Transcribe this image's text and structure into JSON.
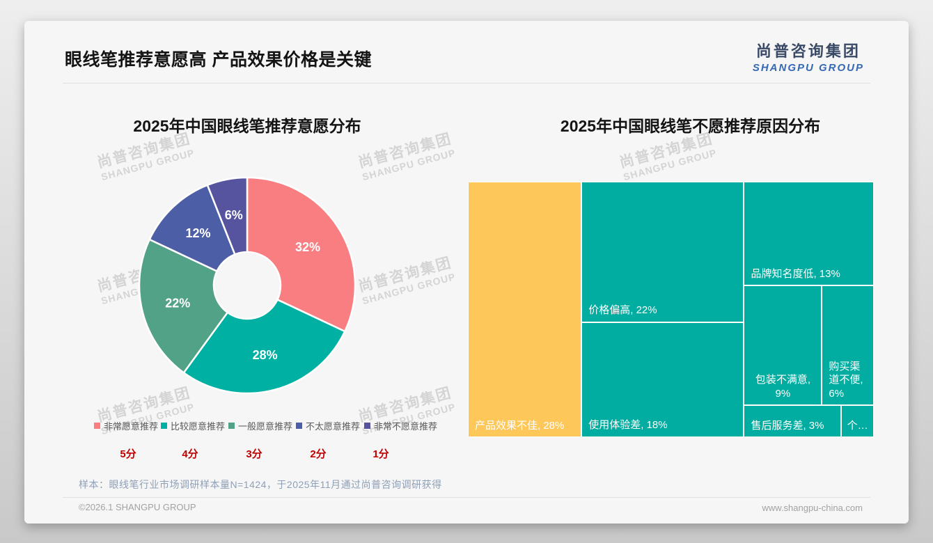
{
  "page": {
    "title": "眼线笔推荐意愿高 产品效果价格是关键",
    "logo": {
      "cn": "尚普咨询集团",
      "en": "SHANGPU GROUP"
    },
    "watermark": {
      "cn": "尚普咨询集团",
      "en": "SHANGPU GROUP"
    },
    "footnote": "样本：眼线笔行业市场调研样本量N=1424，于2025年11月通过尚普咨询调研获得",
    "footer": {
      "left": "©2026.1 SHANGPU GROUP",
      "right": "www.shangpu-china.com"
    }
  },
  "chart_data": [
    {
      "type": "pie",
      "subtype": "donut",
      "title": "2025年中国眼线笔推荐意愿分布",
      "categories": [
        "非常愿意推荐",
        "比较愿意推荐",
        "一般愿意推荐",
        "不太愿意推荐",
        "非常不愿意推荐"
      ],
      "values": [
        32,
        28,
        22,
        12,
        6
      ],
      "labels": [
        "32%",
        "28%",
        "22%",
        "12%",
        "6%"
      ],
      "colors": [
        "#F87E82",
        "#00B0A2",
        "#52A287",
        "#4C5EA6",
        "#57549F"
      ],
      "scores": [
        "5分",
        "4分",
        "3分",
        "2分",
        "1分"
      ],
      "legend_position": "bottom",
      "start_angle_deg": 0,
      "direction": "clockwise"
    },
    {
      "type": "treemap",
      "title": "2025年中国眼线笔不愿推荐原因分布",
      "items": [
        {
          "name": "产品效果不佳",
          "value": 28,
          "label": "产品效果不佳, 28%",
          "color": "#FDC75A"
        },
        {
          "name": "价格偏高",
          "value": 22,
          "label": "价格偏高, 22%",
          "color": "#00ADA0"
        },
        {
          "name": "使用体验差",
          "value": 18,
          "label": "使用体验差, 18%",
          "color": "#00ADA0"
        },
        {
          "name": "品牌知名度低",
          "value": 13,
          "label": "品牌知名度低, 13%",
          "color": "#00ADA0"
        },
        {
          "name": "包装不满意",
          "value": 9,
          "label": "包装不满意, 9%",
          "color": "#00ADA0"
        },
        {
          "name": "购买渠道不便",
          "value": 6,
          "label": "购买渠道不便, 6%",
          "color": "#00ADA0"
        },
        {
          "name": "售后服务差",
          "value": 3,
          "label": "售后服务差, 3%",
          "color": "#00ADA0"
        },
        {
          "name": "个…",
          "value": 1,
          "label": "个…",
          "color": "#00ADA0"
        }
      ]
    }
  ]
}
